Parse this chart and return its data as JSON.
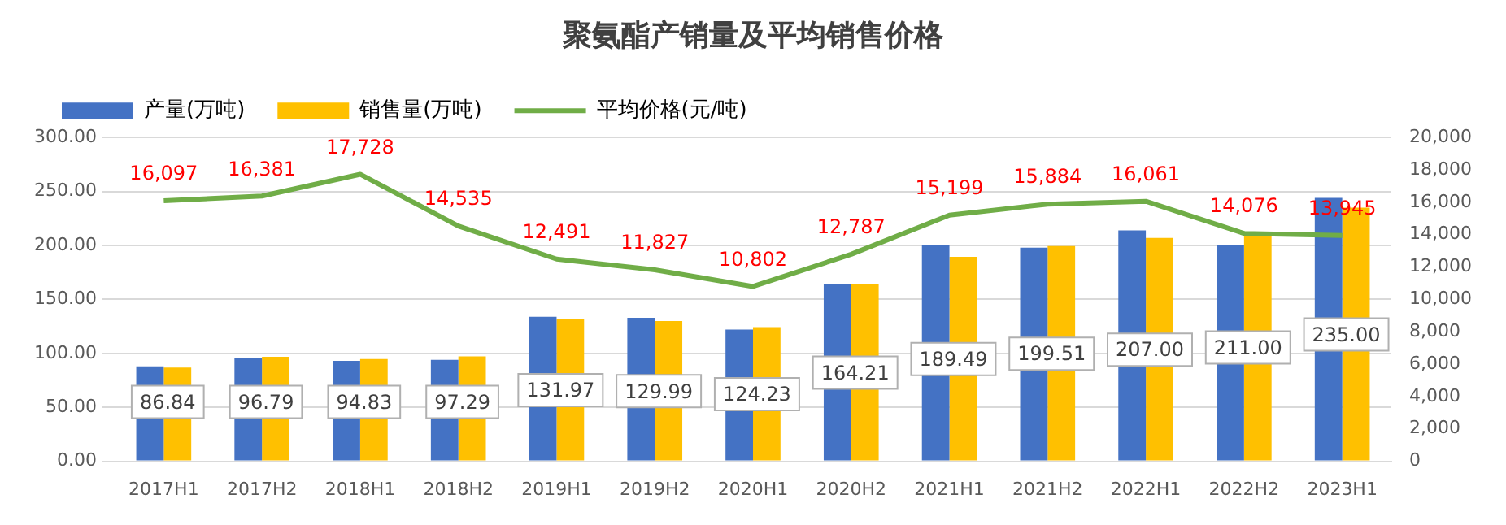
{
  "chart_data": {
    "type": "bar",
    "title": "聚氨酯产销量及平均销售价格",
    "categories": [
      "2017H1",
      "2017H2",
      "2018H1",
      "2018H2",
      "2019H1",
      "2019H2",
      "2020H1",
      "2020H2",
      "2021H1",
      "2021H2",
      "2022H1",
      "2022H2",
      "2023H1"
    ],
    "series": [
      {
        "name": "产量(万吨)",
        "color": "#4472c4",
        "values": [
          88,
          96,
          93,
          94,
          134,
          133,
          122,
          164,
          200,
          198,
          214,
          200,
          244
        ]
      },
      {
        "name": "销售量(万吨)",
        "color": "#ffc000",
        "values": [
          86.84,
          96.79,
          94.83,
          97.29,
          131.97,
          129.99,
          124.23,
          164.21,
          189.49,
          199.51,
          207.0,
          211.0,
          235.0
        ],
        "value_labels": [
          "86.84",
          "96.79",
          "94.83",
          "97.29",
          "131.97",
          "129.99",
          "124.23",
          "164.21",
          "189.49",
          "199.51",
          "207.00",
          "211.00",
          "235.00"
        ]
      },
      {
        "name": "平均价格(元/吨)",
        "type": "line",
        "axis": "y2",
        "color": "#70ad47",
        "values": [
          16097,
          16381,
          17728,
          14535,
          12491,
          11827,
          10802,
          12787,
          15199,
          15884,
          16061,
          14076,
          13945
        ],
        "value_labels": [
          "16,097",
          "16,381",
          "17,728",
          "14,535",
          "12,491",
          "11,827",
          "10,802",
          "12,787",
          "15,199",
          "15,884",
          "16,061",
          "14,076",
          "13,945"
        ]
      }
    ],
    "ylim": [
      0,
      300
    ],
    "yticks": [
      {
        "value": 0,
        "label": "0.00"
      },
      {
        "value": 50,
        "label": "50.00"
      },
      {
        "value": 100,
        "label": "100.00"
      },
      {
        "value": 150,
        "label": "150.00"
      },
      {
        "value": 200,
        "label": "200.00"
      },
      {
        "value": 250,
        "label": "250.00"
      },
      {
        "value": 300,
        "label": "300.00"
      }
    ],
    "y2lim": [
      0,
      20000
    ],
    "y2ticks": [
      0,
      {
        "value": 2000,
        "label": "2,000"
      },
      {
        "value": 4000,
        "label": "4,000"
      },
      {
        "value": 6000,
        "label": "6,000"
      },
      {
        "value": 8000,
        "label": "8,000"
      },
      {
        "value": 10000,
        "label": "10,000"
      },
      {
        "value": 12000,
        "label": "12,000"
      },
      {
        "value": 14000,
        "label": "14,000"
      },
      {
        "value": 16000,
        "label": "16,000"
      },
      {
        "value": 18000,
        "label": "18,000"
      },
      {
        "value": 20000,
        "label": "20,000"
      }
    ],
    "grid": "y",
    "legend": "top left",
    "marker": "none"
  }
}
